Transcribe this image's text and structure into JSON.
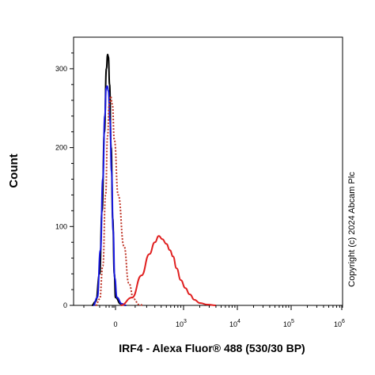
{
  "chart_data": {
    "type": "line",
    "title": "",
    "xlabel": "IRF4 - Alexa Fluor® 488 (530/30 BP)",
    "ylabel": "Count",
    "ylim": [
      0,
      340
    ],
    "y_ticks": [
      0,
      100,
      200,
      300
    ],
    "x_scale": "biexponential",
    "x_ticks": [
      {
        "value": 0,
        "base": "0",
        "exp": ""
      },
      {
        "value": 1000,
        "base": "10",
        "exp": "3"
      },
      {
        "value": 10000,
        "base": "10",
        "exp": "4"
      },
      {
        "value": 100000,
        "base": "10",
        "exp": "5"
      },
      {
        "value": 1000000,
        "base": "10",
        "exp": "6"
      }
    ],
    "grid": false,
    "legend": "none",
    "series": [
      {
        "color": "#000000",
        "style": "solid",
        "points": [
          [
            -300,
            0
          ],
          [
            -250,
            5
          ],
          [
            -200,
            40
          ],
          [
            -170,
            120
          ],
          [
            -140,
            220
          ],
          [
            -115,
            300
          ],
          [
            -100,
            318
          ],
          [
            -90,
            315
          ],
          [
            -75,
            280
          ],
          [
            -55,
            200
          ],
          [
            -35,
            110
          ],
          [
            -15,
            40
          ],
          [
            0,
            10
          ],
          [
            20,
            2
          ],
          [
            45,
            0
          ]
        ]
      },
      {
        "color": "#1a1ae0",
        "style": "solid",
        "points": [
          [
            -280,
            0
          ],
          [
            -230,
            10
          ],
          [
            -190,
            70
          ],
          [
            -160,
            160
          ],
          [
            -135,
            240
          ],
          [
            -118,
            275
          ],
          [
            -105,
            278
          ],
          [
            -90,
            272
          ],
          [
            -70,
            235
          ],
          [
            -50,
            170
          ],
          [
            -30,
            95
          ],
          [
            -10,
            35
          ],
          [
            5,
            10
          ],
          [
            25,
            2
          ],
          [
            45,
            0
          ]
        ]
      },
      {
        "color": "#c0392b",
        "style": "dotted",
        "points": [
          [
            -250,
            0
          ],
          [
            -200,
            8
          ],
          [
            -160,
            50
          ],
          [
            -125,
            140
          ],
          [
            -100,
            215
          ],
          [
            -80,
            255
          ],
          [
            -62,
            265
          ],
          [
            -40,
            255
          ],
          [
            -15,
            210
          ],
          [
            10,
            140
          ],
          [
            35,
            75
          ],
          [
            60,
            28
          ],
          [
            90,
            8
          ],
          [
            130,
            1
          ],
          [
            170,
            0
          ]
        ]
      },
      {
        "color": "#e02020",
        "style": "solid",
        "points": [
          [
            20,
            0
          ],
          [
            80,
            10
          ],
          [
            150,
            38
          ],
          [
            230,
            65
          ],
          [
            300,
            80
          ],
          [
            360,
            88
          ],
          [
            420,
            84
          ],
          [
            500,
            78
          ],
          [
            580,
            70
          ],
          [
            660,
            62
          ],
          [
            760,
            47
          ],
          [
            900,
            32
          ],
          [
            1080,
            22
          ],
          [
            1300,
            14
          ],
          [
            1600,
            7
          ],
          [
            2000,
            3
          ],
          [
            2800,
            1
          ],
          [
            4000,
            0
          ]
        ]
      }
    ]
  },
  "watermark": "Copyright (c) 2024 Abcam Plc"
}
